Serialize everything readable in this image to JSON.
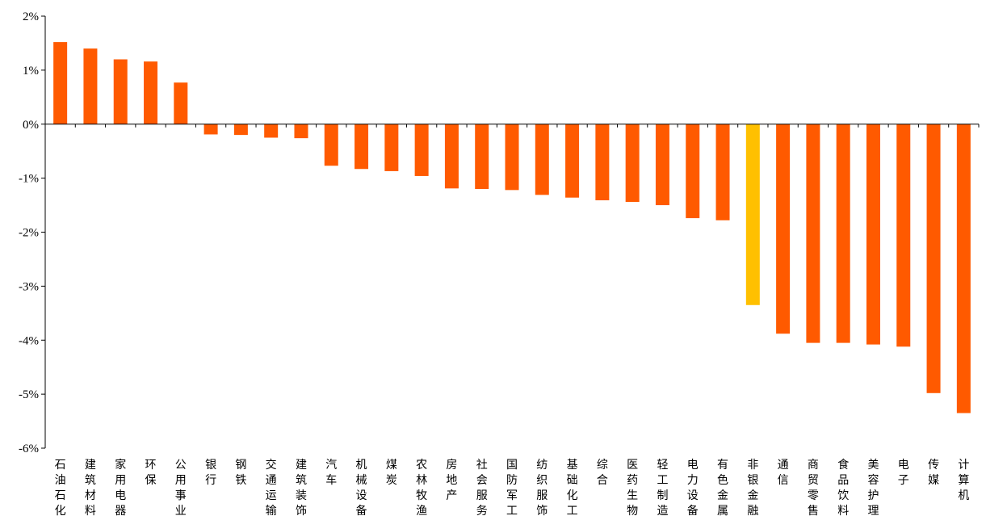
{
  "chart_data": {
    "type": "bar",
    "title": "",
    "xlabel": "",
    "ylabel": "",
    "ylim": [
      -6,
      2
    ],
    "y_ticks": [
      "2%",
      "1%",
      "0%",
      "-1%",
      "-2%",
      "-3%",
      "-4%",
      "-5%",
      "-6%"
    ],
    "y_tick_values": [
      2,
      1,
      0,
      -1,
      -2,
      -3,
      -4,
      -5,
      -6
    ],
    "unit": "%",
    "grid": false,
    "legend": "none",
    "colors": {
      "default": "#FF5A00",
      "highlight": "#FFC000",
      "axis": "#000000"
    },
    "highlight_index": 23,
    "categories": [
      "石油石化",
      "建筑材料",
      "家用电器",
      "环保",
      "公用事业",
      "银行",
      "钢铁",
      "交通运输",
      "建筑装饰",
      "汽车",
      "机械设备",
      "煤炭",
      "农林牧渔",
      "房地产",
      "社会服务",
      "国防军工",
      "纺织服饰",
      "基础化工",
      "综合",
      "医药生物",
      "轻工制造",
      "电力设备",
      "有色金属",
      "非银金融",
      "通信",
      "商贸零售",
      "食品饮料",
      "美容护理",
      "电子",
      "传媒",
      "计算机"
    ],
    "values": [
      1.52,
      1.4,
      1.2,
      1.16,
      0.77,
      -0.19,
      -0.2,
      -0.25,
      -0.26,
      -0.77,
      -0.83,
      -0.87,
      -0.96,
      -1.19,
      -1.2,
      -1.22,
      -1.31,
      -1.36,
      -1.41,
      -1.44,
      -1.5,
      -1.74,
      -1.78,
      -3.35,
      -3.88,
      -4.05,
      -4.05,
      -4.08,
      -4.12,
      -4.98,
      -5.35
    ]
  }
}
